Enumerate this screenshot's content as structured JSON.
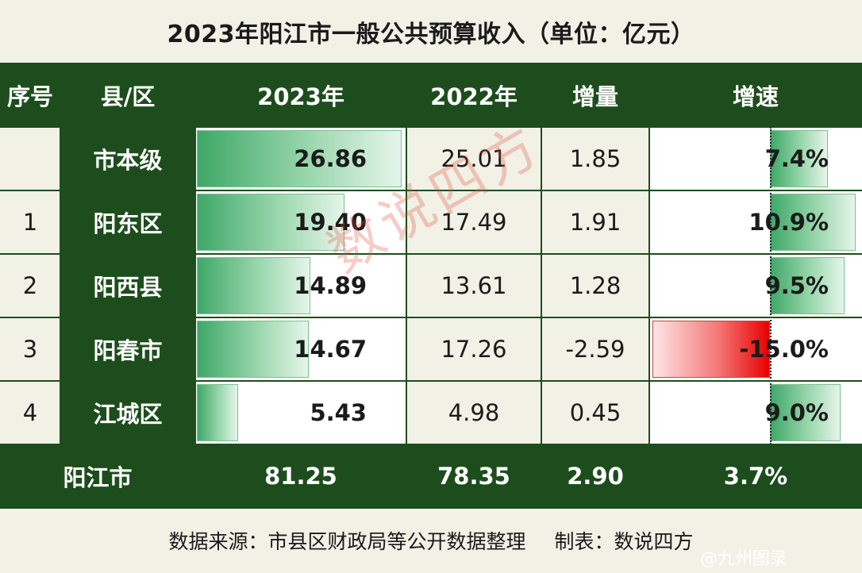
{
  "title": "2023年阳江市一般公共预算收入（单位：亿元）",
  "headers": [
    "序号",
    "县/区",
    "2023年",
    "2022年",
    "增量",
    "增速"
  ],
  "chart_data": {
    "type": "table",
    "title": "2023年阳江市一般公共预算收入（单位：亿元）",
    "columns": [
      "序号",
      "县/区",
      "2023年",
      "2022年",
      "增量",
      "增速"
    ],
    "rows": [
      {
        "seq": "",
        "name": "市本级",
        "v2023": "26.86",
        "v2022": "25.01",
        "delta": "1.85",
        "growth": "7.4%",
        "growth_value": 7.4,
        "v2023_value": 26.86
      },
      {
        "seq": "1",
        "name": "阳东区",
        "v2023": "19.40",
        "v2022": "17.49",
        "delta": "1.91",
        "growth": "10.9%",
        "growth_value": 10.9,
        "v2023_value": 19.4
      },
      {
        "seq": "2",
        "name": "阳西县",
        "v2023": "14.89",
        "v2022": "13.61",
        "delta": "1.28",
        "growth": "9.5%",
        "growth_value": 9.5,
        "v2023_value": 14.89
      },
      {
        "seq": "3",
        "name": "阳春市",
        "v2023": "14.67",
        "v2022": "17.26",
        "delta": "-2.59",
        "growth": "-15.0%",
        "growth_value": -15.0,
        "v2023_value": 14.67
      },
      {
        "seq": "4",
        "name": "江城区",
        "v2023": "5.43",
        "v2022": "4.98",
        "delta": "0.45",
        "growth": "9.0%",
        "growth_value": 9.0,
        "v2023_value": 5.43
      }
    ],
    "total": {
      "name": "阳江市",
      "v2023": "81.25",
      "v2022": "78.35",
      "delta": "2.90",
      "growth": "3.7%"
    }
  },
  "footer": {
    "source": "数据来源：市县区财政局等公开数据整理",
    "maker": "制表：数说四方"
  },
  "watermark": "数说四方",
  "credit": "@九州图录",
  "colors": {
    "header_green": "#1e4d1d",
    "bar_green": "#3fa868",
    "bar_red": "#e80000"
  }
}
